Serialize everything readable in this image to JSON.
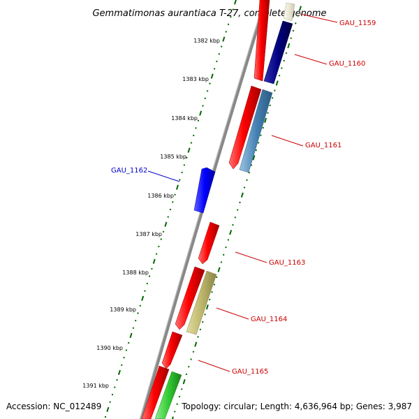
{
  "title": "Gemmatimonas aurantiaca T-27, complete genome",
  "footer": {
    "accession": "Accession: NC_012489",
    "summary": "Topology: circular; Length: 4,636,964 bp; Genes: 3,987"
  },
  "scale_labels": [
    "1382 kbp",
    "1383 kbp",
    "1384 kbp",
    "1385 kbp",
    "1386 kbp",
    "1387 kbp",
    "1388 kbp",
    "1389 kbp",
    "1390 kbp",
    "1391 kbp"
  ],
  "gene_labels": [
    {
      "text": "GAU_1159",
      "color": "#cc0000"
    },
    {
      "text": "GAU_1160",
      "color": "#cc0000"
    },
    {
      "text": "GAU_1161",
      "color": "#cc0000"
    },
    {
      "text": "GAU_1162",
      "color": "#0000cc"
    },
    {
      "text": "GAU_1163",
      "color": "#cc0000"
    },
    {
      "text": "GAU_1164",
      "color": "#cc0000"
    },
    {
      "text": "GAU_1165",
      "color": "#cc0000"
    }
  ],
  "colors": {
    "cds": "#ff0000",
    "navy_feature": "#000080",
    "steelblue_feature": "#4682b4",
    "blue_feature": "#0000ff",
    "khaki_feature": "#bdb76b",
    "green_feature": "#33cc33",
    "cream_feature": "#e8e4d0",
    "backbone": "#888888",
    "ticks": "#006600"
  }
}
